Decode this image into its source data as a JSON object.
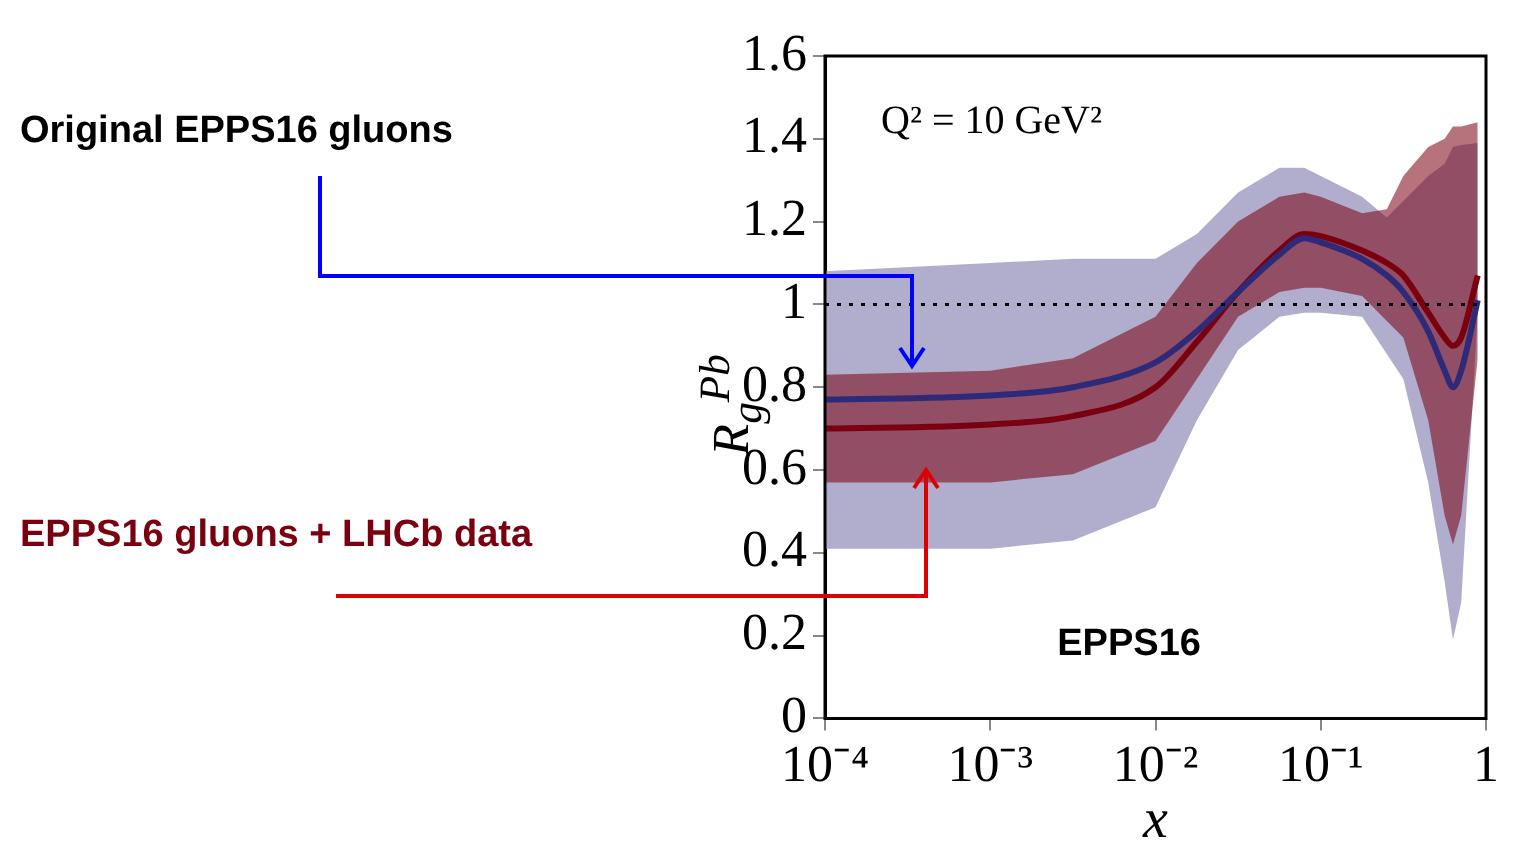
{
  "chart_data": {
    "type": "line",
    "xlabel": "x",
    "ylabel": "R$_{g}$$^{Pb}$",
    "log": "x",
    "x": [
      0.0001,
      0.001,
      0.00316,
      0.01,
      0.0178,
      0.0316,
      0.0562,
      0.0794,
      0.1,
      0.178,
      0.251,
      0.316,
      0.447,
      0.562,
      0.631,
      0.708,
      0.891
    ],
    "series": [
      {
        "name": "Original EPPS16 gluons",
        "color": "#2e2a7a",
        "values": [
          0.77,
          0.78,
          0.8,
          0.86,
          0.935,
          1.03,
          1.12,
          1.16,
          1.15,
          1.11,
          1.07,
          1.03,
          0.935,
          0.84,
          0.8,
          0.84,
          1.01
        ],
        "upper": [
          1.08,
          1.1,
          1.11,
          1.11,
          1.17,
          1.27,
          1.33,
          1.33,
          1.31,
          1.26,
          1.21,
          1.25,
          1.31,
          1.34,
          1.38,
          1.385,
          1.39
        ],
        "lower": [
          0.41,
          0.41,
          0.43,
          0.51,
          0.72,
          0.89,
          0.97,
          0.98,
          0.98,
          0.97,
          0.88,
          0.82,
          0.57,
          0.33,
          0.19,
          0.28,
          0.98
        ]
      },
      {
        "name": "EPPS16 gluons + LHCb data",
        "color": "#7a0010",
        "values": [
          0.7,
          0.71,
          0.73,
          0.8,
          0.91,
          1.03,
          1.13,
          1.17,
          1.165,
          1.13,
          1.1,
          1.07,
          0.98,
          0.92,
          0.9,
          0.92,
          1.07
        ],
        "upper": [
          0.83,
          0.84,
          0.87,
          0.97,
          1.1,
          1.2,
          1.26,
          1.27,
          1.26,
          1.22,
          1.23,
          1.31,
          1.38,
          1.4,
          1.43,
          1.43,
          1.44
        ],
        "lower": [
          0.57,
          0.57,
          0.59,
          0.67,
          0.82,
          0.97,
          1.03,
          1.04,
          1.04,
          1.02,
          0.96,
          0.92,
          0.72,
          0.49,
          0.42,
          0.49,
          0.87
        ]
      }
    ],
    "xlim": [
      0.0001,
      1
    ],
    "xticks": [
      {
        "value": 0.0001,
        "label": "10⁻⁴"
      },
      {
        "value": 0.001,
        "label": "10⁻³"
      },
      {
        "value": 0.01,
        "label": "10⁻²"
      },
      {
        "value": 0.1,
        "label": "10⁻¹"
      },
      1
    ],
    "ylim": [
      0,
      1.6
    ],
    "yticks": [
      0,
      0.2,
      0.4,
      0.6,
      0.8,
      1,
      1.2,
      1.4,
      1.6
    ],
    "ref_lines": [
      {
        "axis": "y",
        "value": 1,
        "color": "#000000",
        "line_style": "dotted"
      }
    ],
    "annotations": [
      "Q² = 10 GeV²",
      "EPPS16"
    ],
    "grid": false,
    "legend": false,
    "marker": "none",
    "line_style": "solid"
  }
}
